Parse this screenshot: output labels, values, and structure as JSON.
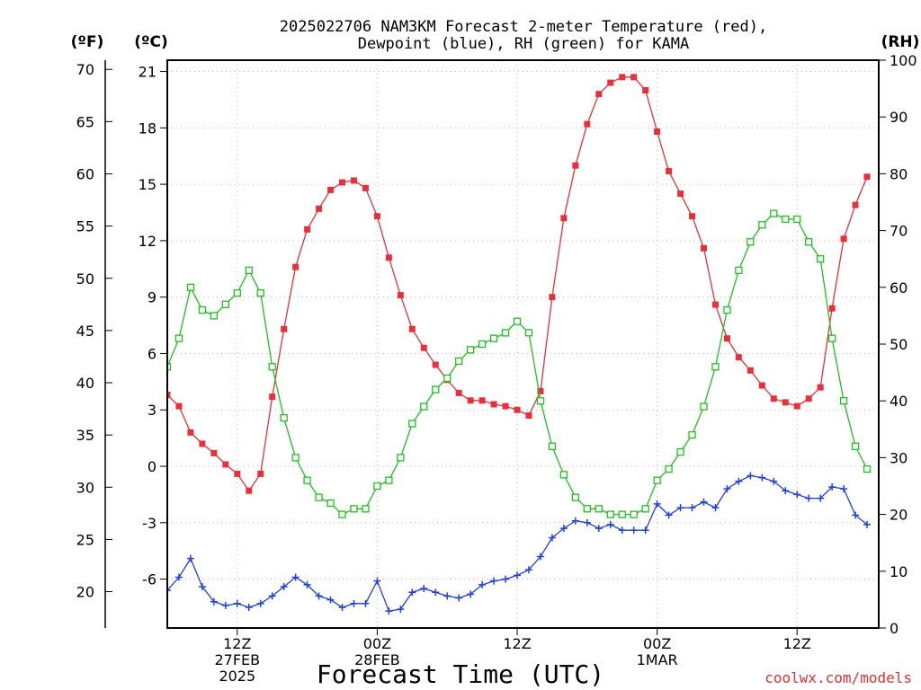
{
  "chart_data": {
    "type": "line",
    "title_lines": [
      "2025022706 NAM3KM Forecast 2-meter Temperature (red),",
      "Dewpoint (blue), RH (green) for KAMA"
    ],
    "xlabel": "Forecast Time (UTC)",
    "credit": "coolwx.com/models",
    "units": {
      "f": "(ºF)",
      "c": "(ºC)",
      "rh": "(RH)"
    },
    "axes": {
      "x": {
        "range": [
          0,
          61
        ],
        "unit": "forecast hour"
      },
      "c": {
        "range": [
          -8.6,
          21.6
        ],
        "ticks": [
          21,
          18,
          15,
          12,
          9,
          6,
          3,
          0,
          -3,
          -6
        ]
      },
      "f": {
        "ticks": [
          70,
          65,
          60,
          55,
          50,
          45,
          40,
          35,
          30,
          25,
          20
        ]
      },
      "rh": {
        "range": [
          0,
          100
        ],
        "ticks": [
          100,
          90,
          80,
          70,
          60,
          50,
          40,
          30,
          20,
          10,
          0
        ]
      }
    },
    "x_ticks": [
      {
        "x": 6,
        "lines": [
          "12Z",
          "27FEB",
          "2025"
        ]
      },
      {
        "x": 18,
        "lines": [
          "00Z",
          "28FEB"
        ]
      },
      {
        "x": 30,
        "lines": [
          "12Z"
        ]
      },
      {
        "x": 42,
        "lines": [
          "00Z",
          "1MAR"
        ]
      },
      {
        "x": 54,
        "lines": [
          "12Z"
        ]
      }
    ],
    "grid": true,
    "x": [
      0,
      1,
      2,
      3,
      4,
      5,
      6,
      7,
      8,
      9,
      10,
      11,
      12,
      13,
      14,
      15,
      16,
      17,
      18,
      19,
      20,
      21,
      22,
      23,
      24,
      25,
      26,
      27,
      28,
      29,
      30,
      31,
      32,
      33,
      34,
      35,
      36,
      37,
      38,
      39,
      40,
      41,
      42,
      43,
      44,
      45,
      46,
      47,
      48,
      49,
      50,
      51,
      52,
      53,
      54,
      55,
      56,
      57,
      58,
      59,
      60
    ],
    "series": [
      {
        "name": "Temperature",
        "axis": "c",
        "color": "#e8303a",
        "marker": "filled-square",
        "values": [
          3.8,
          3.2,
          1.8,
          1.2,
          0.7,
          0.1,
          -0.4,
          -1.3,
          -0.4,
          3.7,
          7.3,
          10.6,
          12.6,
          13.7,
          14.7,
          15.1,
          15.2,
          14.8,
          13.3,
          11.1,
          9.1,
          7.3,
          6.3,
          5.4,
          4.6,
          3.9,
          3.5,
          3.5,
          3.3,
          3.2,
          3.0,
          2.7,
          4.0,
          9.0,
          13.2,
          16.0,
          18.2,
          19.8,
          20.4,
          20.7,
          20.7,
          20.0,
          17.8,
          15.7,
          14.5,
          13.3,
          11.6,
          8.6,
          6.8,
          5.8,
          5.1,
          4.3,
          3.6,
          3.4,
          3.2,
          3.6,
          4.2,
          8.4,
          12.1,
          13.9,
          15.4
        ]
      },
      {
        "name": "Dewpoint",
        "axis": "c",
        "color": "#2040e0",
        "marker": "plus",
        "values": [
          -6.6,
          -5.9,
          -4.9,
          -6.4,
          -7.2,
          -7.4,
          -7.3,
          -7.5,
          -7.3,
          -6.9,
          -6.4,
          -5.9,
          -6.3,
          -6.9,
          -7.1,
          -7.5,
          -7.3,
          -7.3,
          -6.1,
          -7.7,
          -7.6,
          -6.7,
          -6.5,
          -6.7,
          -6.9,
          -7.0,
          -6.8,
          -6.3,
          -6.1,
          -6.0,
          -5.8,
          -5.5,
          -4.8,
          -3.8,
          -3.3,
          -2.9,
          -3.0,
          -3.3,
          -3.1,
          -3.4,
          -3.4,
          -3.4,
          -2.0,
          -2.6,
          -2.2,
          -2.2,
          -1.9,
          -2.2,
          -1.2,
          -0.8,
          -0.5,
          -0.6,
          -0.8,
          -1.3,
          -1.5,
          -1.7,
          -1.7,
          -1.1,
          -1.2,
          -2.6,
          -3.1
        ]
      },
      {
        "name": "RH",
        "axis": "rh",
        "color": "#20c020",
        "marker": "open-square",
        "values": [
          46,
          51,
          60,
          56,
          55,
          57,
          59,
          63,
          59,
          46,
          37,
          30,
          26,
          23,
          22,
          20,
          21,
          21,
          25,
          26,
          30,
          36,
          39,
          42,
          44,
          47,
          49,
          50,
          51,
          52,
          54,
          52,
          40,
          32,
          27,
          23,
          21,
          21,
          20,
          20,
          20,
          21,
          26,
          28,
          31,
          34,
          39,
          46,
          56,
          63,
          68,
          71,
          73,
          72,
          72,
          68,
          65,
          51,
          40,
          32,
          28
        ]
      }
    ]
  }
}
